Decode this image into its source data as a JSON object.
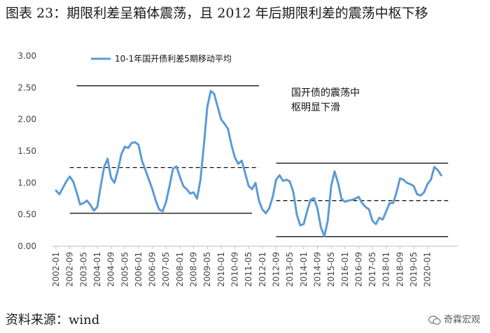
{
  "figure": {
    "title": "图表 23：期限利差呈箱体震荡，且 2012 年后期限利差的震荡中枢下移",
    "source": "资料来源：wind",
    "watermark": "奇霖宏观"
  },
  "colors": {
    "series": "#5B9BD5",
    "lines": "#000000",
    "tick": "#444444"
  },
  "chart_data": {
    "type": "line",
    "legend": {
      "label": "10-1年国开债利差5期移动平均",
      "position": "top-left"
    },
    "ylim": [
      0,
      3
    ],
    "yticks": [
      "0.00",
      "0.50",
      "1.00",
      "1.50",
      "2.00",
      "2.50",
      "3.00"
    ],
    "xticks": [
      "2002-01",
      "2002-09",
      "2003-05",
      "2004-01",
      "2004-09",
      "2005-05",
      "2006-01",
      "2006-09",
      "2007-05",
      "2008-01",
      "2008-09",
      "2009-05",
      "2010-01",
      "2010-09",
      "2011-05",
      "2012-01",
      "2012-09",
      "2013-05",
      "2014-01",
      "2014-09",
      "2015-05",
      "2016-01",
      "2016-09",
      "2017-05",
      "2018-01",
      "2018-09",
      "2019-05",
      "2020-01"
    ],
    "x_range": [
      "2002-01",
      "2021-05"
    ],
    "annotation": {
      "lines": [
        "国开债的震荡中",
        "枢明显下滑"
      ]
    },
    "reference_lines": [
      {
        "style": "solid",
        "value": 2.53,
        "from": "2003-01",
        "to": "2011-11"
      },
      {
        "style": "dashed",
        "value": 1.24,
        "from": "2002-09",
        "to": "2011-11"
      },
      {
        "style": "solid",
        "value": 0.52,
        "from": "2002-09",
        "to": "2011-07"
      },
      {
        "style": "solid",
        "value": 1.31,
        "from": "2012-09",
        "to": "2021-01"
      },
      {
        "style": "dashed",
        "value": 0.72,
        "from": "2012-09",
        "to": "2021-01"
      },
      {
        "style": "solid",
        "value": 0.15,
        "from": "2012-09",
        "to": "2021-01"
      }
    ],
    "series": [
      {
        "points": [
          [
            "2002-01",
            0.88
          ],
          [
            "2002-03",
            0.82
          ],
          [
            "2002-05",
            0.92
          ],
          [
            "2002-07",
            1.02
          ],
          [
            "2002-09",
            1.1
          ],
          [
            "2002-11",
            1.02
          ],
          [
            "2003-01",
            0.85
          ],
          [
            "2003-03",
            0.66
          ],
          [
            "2003-05",
            0.68
          ],
          [
            "2003-07",
            0.72
          ],
          [
            "2003-09",
            0.65
          ],
          [
            "2003-11",
            0.56
          ],
          [
            "2004-01",
            0.62
          ],
          [
            "2004-03",
            0.95
          ],
          [
            "2004-05",
            1.25
          ],
          [
            "2004-07",
            1.38
          ],
          [
            "2004-09",
            1.08
          ],
          [
            "2004-11",
            1.0
          ],
          [
            "2005-01",
            1.2
          ],
          [
            "2005-03",
            1.45
          ],
          [
            "2005-05",
            1.57
          ],
          [
            "2005-07",
            1.55
          ],
          [
            "2005-09",
            1.63
          ],
          [
            "2005-11",
            1.64
          ],
          [
            "2006-01",
            1.6
          ],
          [
            "2006-03",
            1.35
          ],
          [
            "2006-05",
            1.2
          ],
          [
            "2006-07",
            1.05
          ],
          [
            "2006-09",
            0.9
          ],
          [
            "2006-11",
            0.72
          ],
          [
            "2007-01",
            0.58
          ],
          [
            "2007-03",
            0.55
          ],
          [
            "2007-05",
            0.7
          ],
          [
            "2007-07",
            0.95
          ],
          [
            "2007-09",
            1.22
          ],
          [
            "2007-11",
            1.26
          ],
          [
            "2008-01",
            1.1
          ],
          [
            "2008-03",
            0.95
          ],
          [
            "2008-05",
            0.9
          ],
          [
            "2008-07",
            0.83
          ],
          [
            "2008-09",
            0.85
          ],
          [
            "2008-11",
            0.75
          ],
          [
            "2009-01",
            1.05
          ],
          [
            "2009-03",
            1.6
          ],
          [
            "2009-05",
            2.2
          ],
          [
            "2009-07",
            2.45
          ],
          [
            "2009-09",
            2.4
          ],
          [
            "2009-11",
            2.2
          ],
          [
            "2010-01",
            2.0
          ],
          [
            "2010-03",
            1.93
          ],
          [
            "2010-05",
            1.85
          ],
          [
            "2010-07",
            1.6
          ],
          [
            "2010-09",
            1.4
          ],
          [
            "2010-11",
            1.3
          ],
          [
            "2011-01",
            1.35
          ],
          [
            "2011-03",
            1.15
          ],
          [
            "2011-05",
            0.95
          ],
          [
            "2011-07",
            0.9
          ],
          [
            "2011-09",
            1.0
          ],
          [
            "2011-11",
            0.72
          ],
          [
            "2012-01",
            0.58
          ],
          [
            "2012-03",
            0.52
          ],
          [
            "2012-05",
            0.6
          ],
          [
            "2012-07",
            0.78
          ],
          [
            "2012-09",
            1.05
          ],
          [
            "2012-11",
            1.12
          ],
          [
            "2013-01",
            1.03
          ],
          [
            "2013-03",
            1.05
          ],
          [
            "2013-05",
            1.02
          ],
          [
            "2013-07",
            0.85
          ],
          [
            "2013-09",
            0.5
          ],
          [
            "2013-11",
            0.33
          ],
          [
            "2014-01",
            0.35
          ],
          [
            "2014-03",
            0.55
          ],
          [
            "2014-05",
            0.73
          ],
          [
            "2014-07",
            0.76
          ],
          [
            "2014-09",
            0.6
          ],
          [
            "2014-11",
            0.3
          ],
          [
            "2015-01",
            0.16
          ],
          [
            "2015-03",
            0.4
          ],
          [
            "2015-05",
            0.95
          ],
          [
            "2015-07",
            1.18
          ],
          [
            "2015-09",
            1.0
          ],
          [
            "2015-11",
            0.75
          ],
          [
            "2016-01",
            0.7
          ],
          [
            "2016-03",
            0.72
          ],
          [
            "2016-05",
            0.73
          ],
          [
            "2016-07",
            0.75
          ],
          [
            "2016-09",
            0.78
          ],
          [
            "2016-11",
            0.68
          ],
          [
            "2017-01",
            0.62
          ],
          [
            "2017-03",
            0.58
          ],
          [
            "2017-05",
            0.4
          ],
          [
            "2017-07",
            0.35
          ],
          [
            "2017-09",
            0.45
          ],
          [
            "2017-11",
            0.42
          ],
          [
            "2018-01",
            0.55
          ],
          [
            "2018-03",
            0.68
          ],
          [
            "2018-05",
            0.68
          ],
          [
            "2018-07",
            0.85
          ],
          [
            "2018-09",
            1.07
          ],
          [
            "2018-11",
            1.05
          ],
          [
            "2019-01",
            1.0
          ],
          [
            "2019-03",
            0.98
          ],
          [
            "2019-05",
            0.95
          ],
          [
            "2019-07",
            0.82
          ],
          [
            "2019-09",
            0.8
          ],
          [
            "2019-11",
            0.85
          ],
          [
            "2020-01",
            0.98
          ],
          [
            "2020-03",
            1.05
          ],
          [
            "2020-05",
            1.25
          ],
          [
            "2020-07",
            1.2
          ],
          [
            "2020-09",
            1.12
          ]
        ]
      }
    ]
  }
}
